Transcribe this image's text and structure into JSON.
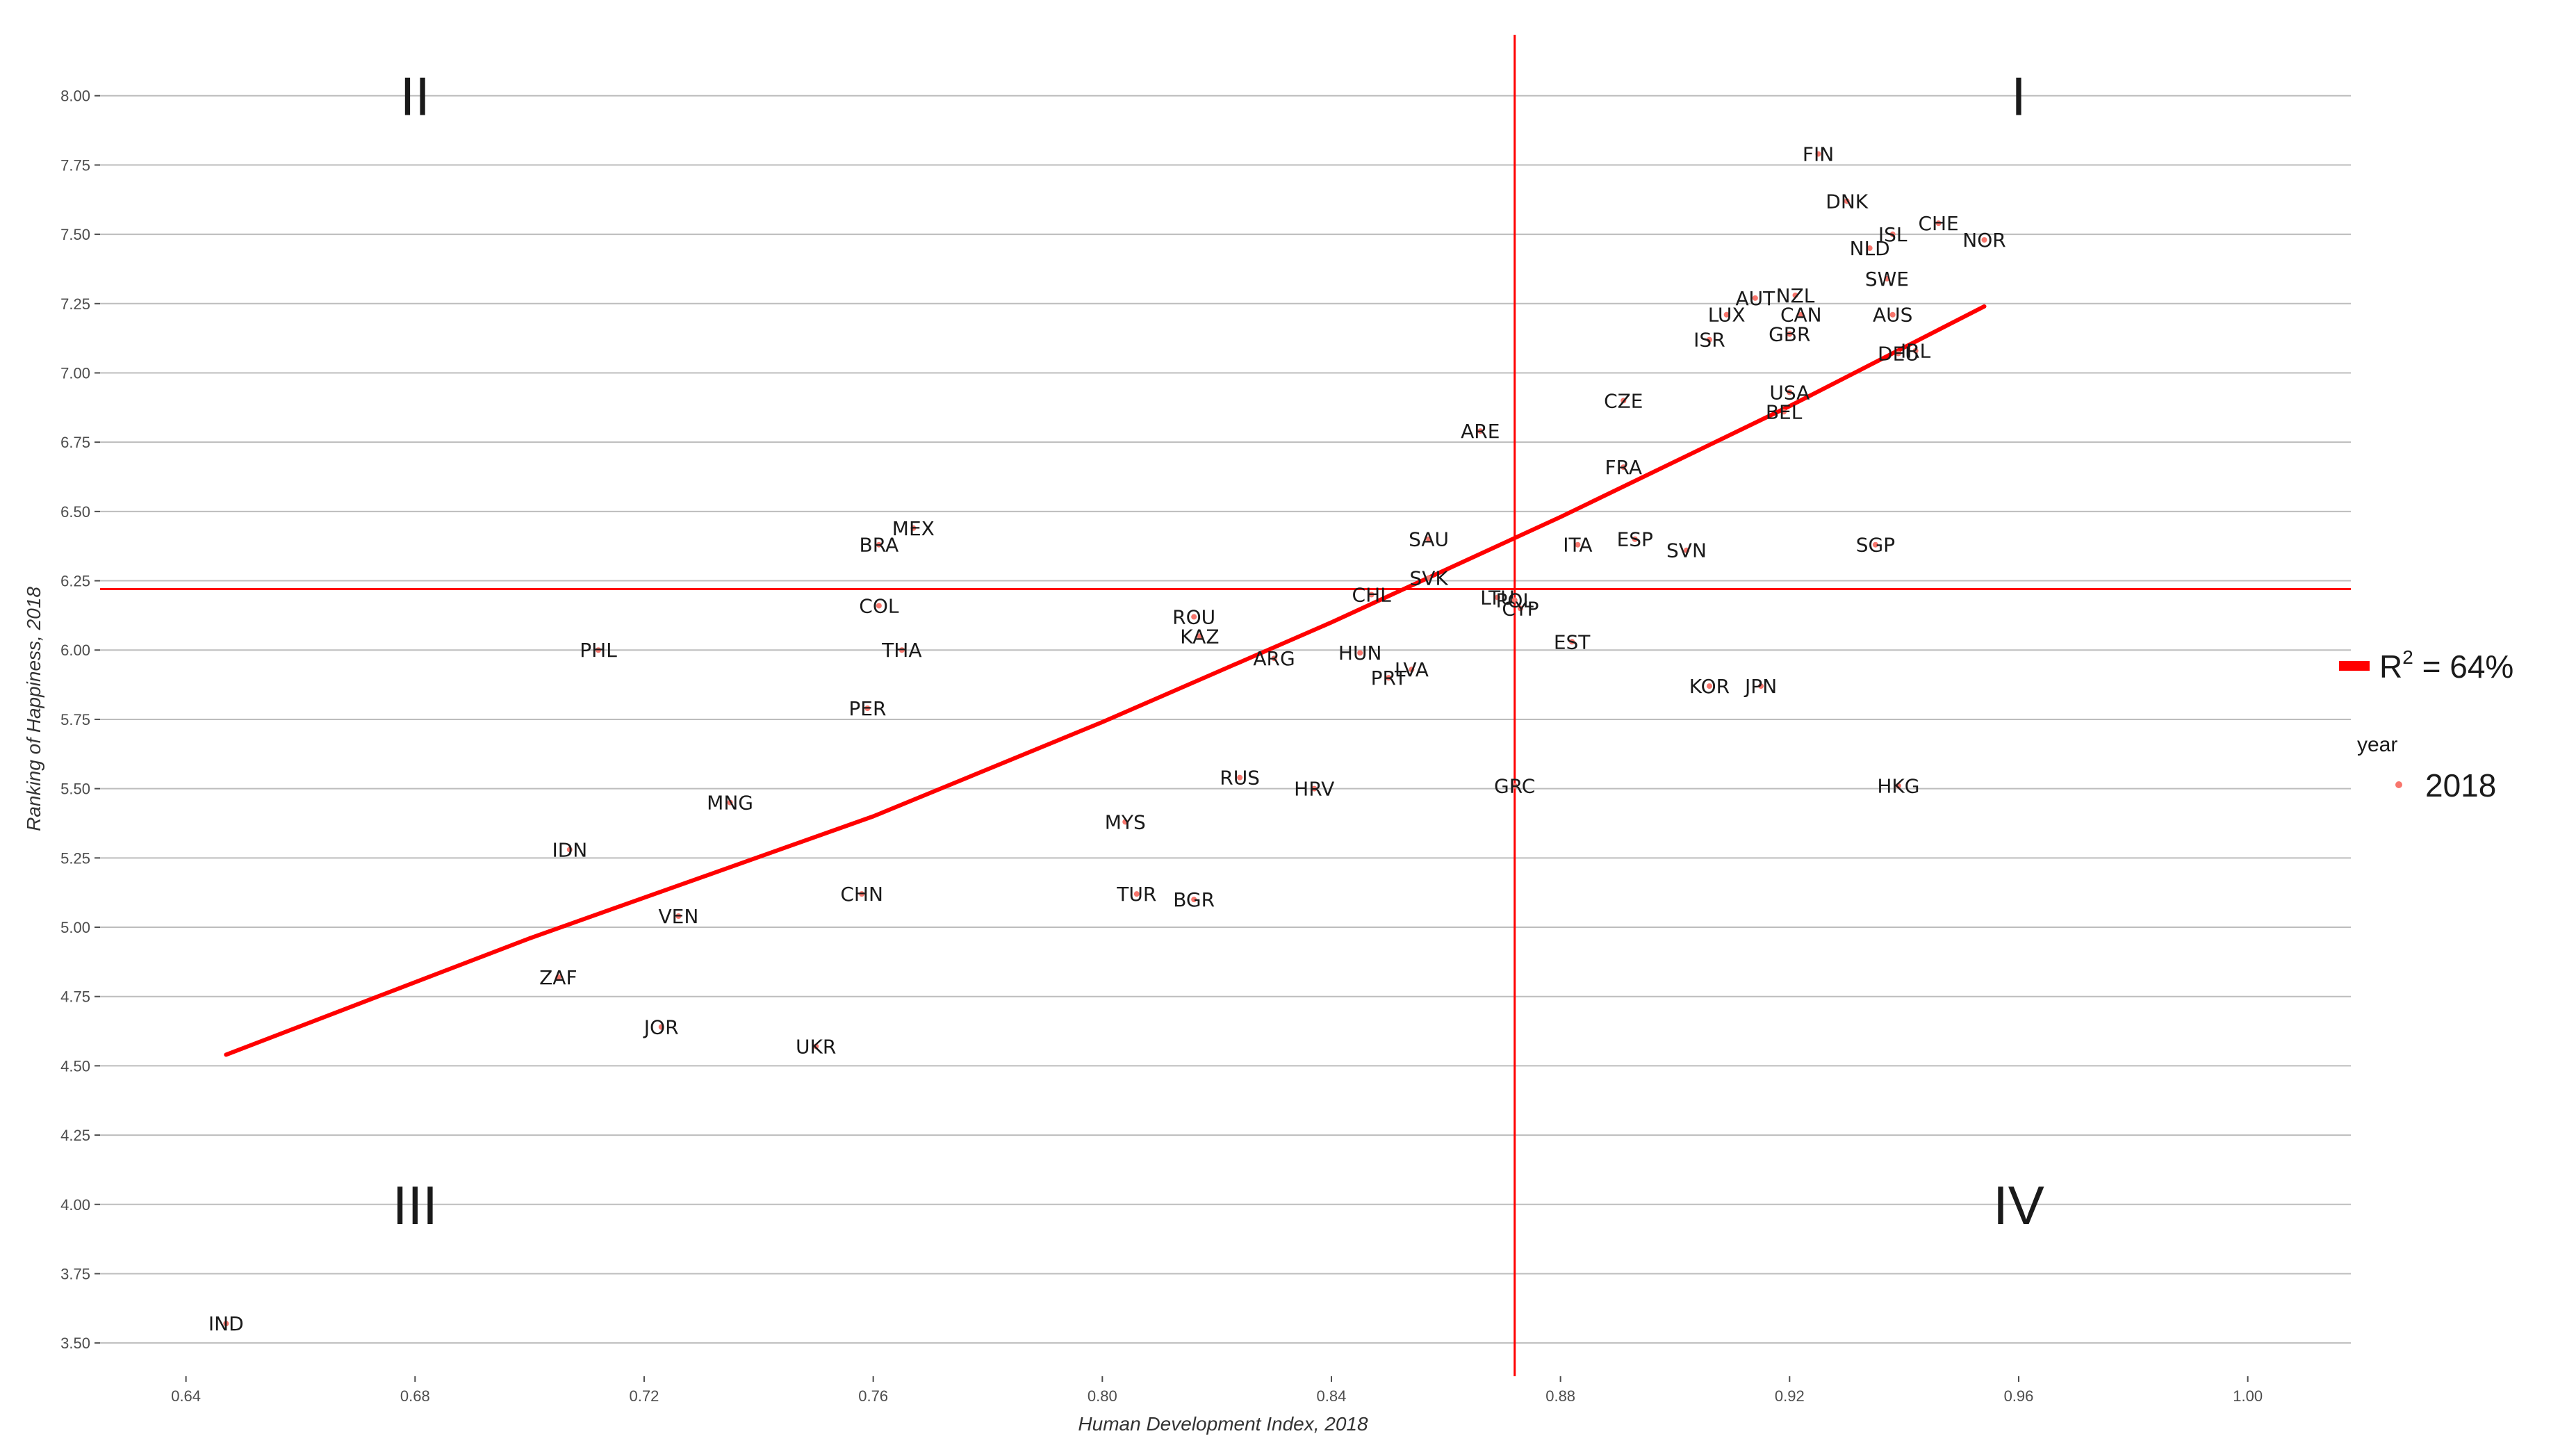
{
  "chart_data": {
    "type": "scatter",
    "xlabel": "Human Development Index, 2018",
    "ylabel": "Ranking of Happiness, 2018",
    "xlim": [
      0.625,
      1.018
    ],
    "ylim": [
      3.38,
      8.22
    ],
    "x_ticks": [
      "0.64",
      "0.68",
      "0.72",
      "0.76",
      "0.80",
      "0.84",
      "0.88",
      "0.92",
      "0.96",
      "1.00"
    ],
    "y_ticks": [
      "3.50",
      "3.75",
      "4.00",
      "4.25",
      "4.50",
      "4.75",
      "5.00",
      "5.25",
      "5.50",
      "5.75",
      "6.00",
      "6.25",
      "6.50",
      "6.75",
      "7.00",
      "7.25",
      "7.50",
      "7.75",
      "8.00"
    ],
    "grid": "horizontal major gridlines",
    "vline_x": 0.872,
    "hline_y": 6.22,
    "point_color": "#f8766d",
    "line_color": "#ff0000",
    "trend_line": [
      [
        0.647,
        4.54
      ],
      [
        0.7,
        4.96
      ],
      [
        0.76,
        5.4
      ],
      [
        0.8,
        5.74
      ],
      [
        0.84,
        6.1
      ],
      [
        0.88,
        6.48
      ],
      [
        0.92,
        6.88
      ],
      [
        0.954,
        7.24
      ]
    ],
    "quadrants": [
      {
        "label": "I",
        "x": 0.96,
        "y": 8.0
      },
      {
        "label": "II",
        "x": 0.68,
        "y": 8.0
      },
      {
        "label": "III",
        "x": 0.68,
        "y": 4.0
      },
      {
        "label": "IV",
        "x": 0.96,
        "y": 4.0
      }
    ],
    "points": [
      {
        "label": "FIN",
        "x": 0.925,
        "y": 7.79
      },
      {
        "label": "DNK",
        "x": 0.93,
        "y": 7.62
      },
      {
        "label": "CHE",
        "x": 0.946,
        "y": 7.54
      },
      {
        "label": "ISL",
        "x": 0.938,
        "y": 7.5
      },
      {
        "label": "NOR",
        "x": 0.954,
        "y": 7.48
      },
      {
        "label": "NLD",
        "x": 0.934,
        "y": 7.45
      },
      {
        "label": "SWE",
        "x": 0.937,
        "y": 7.34
      },
      {
        "label": "AUT",
        "x": 0.914,
        "y": 7.27
      },
      {
        "label": "NZL",
        "x": 0.921,
        "y": 7.28
      },
      {
        "label": "LUX",
        "x": 0.909,
        "y": 7.21
      },
      {
        "label": "CAN",
        "x": 0.922,
        "y": 7.21
      },
      {
        "label": "AUS",
        "x": 0.938,
        "y": 7.21
      },
      {
        "label": "GBR",
        "x": 0.92,
        "y": 7.14
      },
      {
        "label": "ISR",
        "x": 0.906,
        "y": 7.12
      },
      {
        "label": "DEU",
        "x": 0.939,
        "y": 7.07
      },
      {
        "label": "IRL",
        "x": 0.942,
        "y": 7.08
      },
      {
        "label": "CZE",
        "x": 0.891,
        "y": 6.9
      },
      {
        "label": "USA",
        "x": 0.92,
        "y": 6.93
      },
      {
        "label": "BEL",
        "x": 0.919,
        "y": 6.86
      },
      {
        "label": "ARE",
        "x": 0.866,
        "y": 6.79
      },
      {
        "label": "FRA",
        "x": 0.891,
        "y": 6.66
      },
      {
        "label": "MEX",
        "x": 0.767,
        "y": 6.44
      },
      {
        "label": "SAU",
        "x": 0.857,
        "y": 6.4
      },
      {
        "label": "BRA",
        "x": 0.761,
        "y": 6.38
      },
      {
        "label": "ITA",
        "x": 0.883,
        "y": 6.38
      },
      {
        "label": "ESP",
        "x": 0.893,
        "y": 6.4
      },
      {
        "label": "SVN",
        "x": 0.902,
        "y": 6.36
      },
      {
        "label": "SGP",
        "x": 0.935,
        "y": 6.38
      },
      {
        "label": "SVK",
        "x": 0.857,
        "y": 6.26
      },
      {
        "label": "CHL",
        "x": 0.847,
        "y": 6.2
      },
      {
        "label": "LTU",
        "x": 0.869,
        "y": 6.19
      },
      {
        "label": "POL",
        "x": 0.872,
        "y": 6.18
      },
      {
        "label": "CYP",
        "x": 0.873,
        "y": 6.15
      },
      {
        "label": "COL",
        "x": 0.761,
        "y": 6.16
      },
      {
        "label": "ROU",
        "x": 0.816,
        "y": 6.12
      },
      {
        "label": "KAZ",
        "x": 0.817,
        "y": 6.05
      },
      {
        "label": "EST",
        "x": 0.882,
        "y": 6.03
      },
      {
        "label": "PHL",
        "x": 0.712,
        "y": 6.0
      },
      {
        "label": "THA",
        "x": 0.765,
        "y": 6.0
      },
      {
        "label": "HUN",
        "x": 0.845,
        "y": 5.99
      },
      {
        "label": "ARG",
        "x": 0.83,
        "y": 5.97
      },
      {
        "label": "LVA",
        "x": 0.854,
        "y": 5.93
      },
      {
        "label": "PRT",
        "x": 0.85,
        "y": 5.9
      },
      {
        "label": "KOR",
        "x": 0.906,
        "y": 5.87
      },
      {
        "label": "JPN",
        "x": 0.915,
        "y": 5.87
      },
      {
        "label": "PER",
        "x": 0.759,
        "y": 5.79
      },
      {
        "label": "RUS",
        "x": 0.824,
        "y": 5.54
      },
      {
        "label": "HRV",
        "x": 0.837,
        "y": 5.5
      },
      {
        "label": "GRC",
        "x": 0.872,
        "y": 5.51
      },
      {
        "label": "HKG",
        "x": 0.939,
        "y": 5.51
      },
      {
        "label": "MNG",
        "x": 0.735,
        "y": 5.45
      },
      {
        "label": "MYS",
        "x": 0.804,
        "y": 5.38
      },
      {
        "label": "IDN",
        "x": 0.707,
        "y": 5.28
      },
      {
        "label": "CHN",
        "x": 0.758,
        "y": 5.12
      },
      {
        "label": "TUR",
        "x": 0.806,
        "y": 5.12
      },
      {
        "label": "BGR",
        "x": 0.816,
        "y": 5.1
      },
      {
        "label": "VEN",
        "x": 0.726,
        "y": 5.04
      },
      {
        "label": "ZAF",
        "x": 0.705,
        "y": 4.82
      },
      {
        "label": "JOR",
        "x": 0.723,
        "y": 4.64
      },
      {
        "label": "UKR",
        "x": 0.75,
        "y": 4.57
      },
      {
        "label": "IND",
        "x": 0.647,
        "y": 3.57
      }
    ],
    "legend": {
      "trend_label": "R",
      "trend_superscript": "2",
      "trend_value": " = 64%",
      "points_title": "year",
      "points_label": "2018"
    }
  }
}
